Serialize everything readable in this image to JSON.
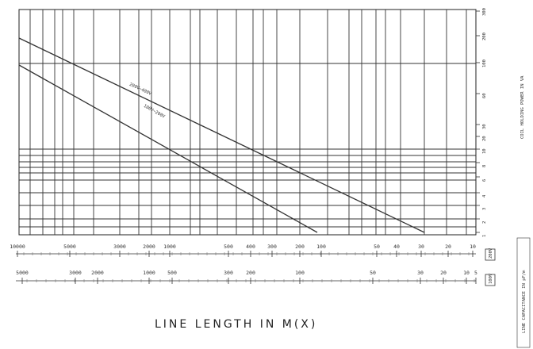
{
  "chart_data": {
    "type": "line",
    "x_scale": "log",
    "x_range_m": [
      10,
      10000
    ],
    "y_right_ticks": [
      "300",
      "200",
      "100",
      "60",
      "30",
      "20",
      "10",
      "8",
      "6",
      "4",
      "3",
      "2",
      "1"
    ],
    "y_right_label": "COIL HOLDING POWER IN VA",
    "axes_top_label": "M(X)",
    "axes_bottom_label": "M(X)",
    "axis_top_ticks": [
      "10000",
      "5000",
      "3000",
      "2000",
      "1000",
      "500",
      "400",
      "300",
      "200",
      "100",
      "50",
      "40",
      "30",
      "20",
      "10"
    ],
    "axis_top_unit": "200V",
    "axis_bottom_ticks": [
      "5000",
      "3000",
      "2000",
      "1000",
      "500",
      "300",
      "200",
      "100",
      "50",
      "30",
      "20",
      "10",
      "5"
    ],
    "axis_bottom_unit": "100V",
    "xlabel": "LINE LENGTH IN M(X)",
    "side_label": "LINE CAPACITANCE IN pF/m",
    "series": [
      {
        "name": "200V~400V",
        "angle_label": "200V~400V"
      },
      {
        "name": "100V~200V",
        "angle_label": "100V~200V"
      }
    ],
    "grid": true
  }
}
